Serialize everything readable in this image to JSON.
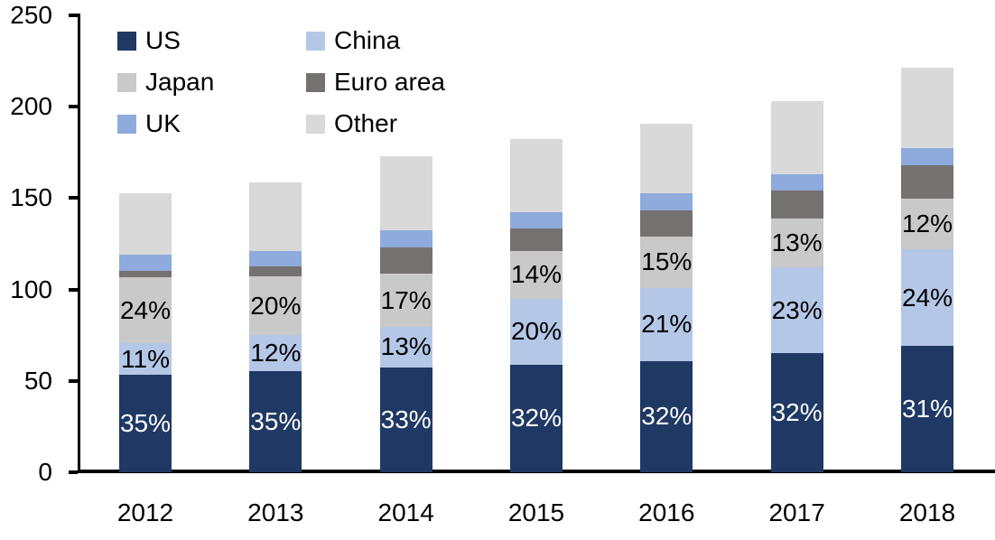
{
  "chart_data": {
    "type": "bar",
    "stacked": true,
    "title": "",
    "xlabel": "",
    "ylabel": "",
    "categories": [
      "2012",
      "2013",
      "2014",
      "2015",
      "2016",
      "2017",
      "2018"
    ],
    "series": [
      {
        "name": "US",
        "color": "#1F3864",
        "label_color": "#FFFFFF",
        "values": [
          53.5,
          55.5,
          57.5,
          59,
          61,
          65,
          69
        ],
        "labels": [
          "35%",
          "35%",
          "33%",
          "32%",
          "32%",
          "32%",
          "31%"
        ]
      },
      {
        "name": "China",
        "color": "#B4C7E7",
        "label_color": "#000000",
        "values": [
          17,
          19.5,
          22,
          36,
          40,
          47,
          53
        ],
        "labels": [
          "11%",
          "12%",
          "13%",
          "20%",
          "21%",
          "23%",
          "24%"
        ]
      },
      {
        "name": "Japan",
        "color": "#C9C9C9",
        "label_color": "#000000",
        "values": [
          36,
          32,
          29,
          26,
          28,
          27,
          27.5
        ],
        "labels": [
          "24%",
          "20%",
          "17%",
          "14%",
          "15%",
          "13%",
          "12%"
        ]
      },
      {
        "name": "Euro area",
        "color": "#767171",
        "values": [
          3.5,
          5.5,
          14.5,
          12.5,
          14.5,
          15,
          18.5
        ]
      },
      {
        "name": "UK",
        "color": "#8FAADC",
        "values": [
          9,
          8.5,
          9.5,
          9,
          9,
          9,
          9.5
        ]
      },
      {
        "name": "Other",
        "color": "#D9D9D9",
        "values": [
          33.5,
          37.5,
          40.5,
          40,
          38,
          40,
          44
        ]
      }
    ],
    "totals": [
      152.5,
      158.5,
      173,
      182.5,
      190.5,
      203,
      221.5
    ],
    "ylim": [
      0,
      250
    ],
    "yticks": [
      0,
      50,
      100,
      150,
      200,
      250
    ],
    "grid": false,
    "legend_position": "top-left",
    "legend_columns": 2,
    "legend_order": [
      "US",
      "China",
      "Japan",
      "Euro area",
      "UK",
      "Other"
    ],
    "axis_color": "#000000",
    "text_color": "#000000"
  }
}
